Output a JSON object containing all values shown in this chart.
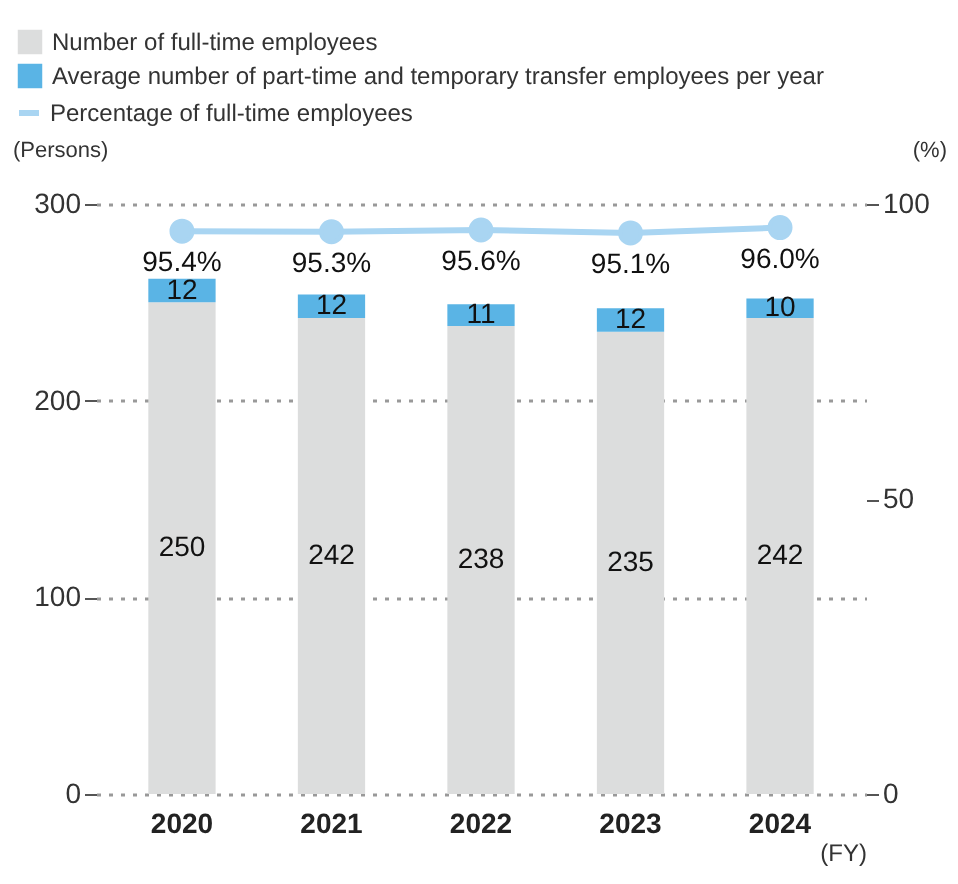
{
  "chart_data": {
    "type": "bar",
    "stacked": true,
    "categories": [
      "2020",
      "2021",
      "2022",
      "2023",
      "2024"
    ],
    "series": [
      {
        "name": "Number of full-time employees",
        "color": "#dcdddd",
        "values": [
          250,
          242,
          238,
          235,
          242
        ]
      },
      {
        "name": "Average number of part-time and temporary transfer employees per year",
        "color": "#5ab4e5",
        "values": [
          12,
          12,
          11,
          12,
          10
        ]
      },
      {
        "name": "Percentage of full-time employees",
        "type": "line",
        "axis": "y2",
        "color": "#a9d5f2",
        "marker": "circle",
        "values": [
          95.4,
          95.3,
          95.6,
          95.1,
          96.0
        ],
        "value_labels": [
          "95.4%",
          "95.3%",
          "95.6%",
          "95.1%",
          "96.0%"
        ]
      }
    ],
    "ylim": [
      0,
      300
    ],
    "yticks": [
      0,
      100,
      200,
      300
    ],
    "y2lim": [
      0,
      100
    ],
    "y2ticks": [
      0,
      50,
      100
    ],
    "ylabel": "(Persons)",
    "y2label": "(%)",
    "xlabel": "(FY)",
    "grid": "y",
    "data_labels": true,
    "legend": "top left"
  }
}
